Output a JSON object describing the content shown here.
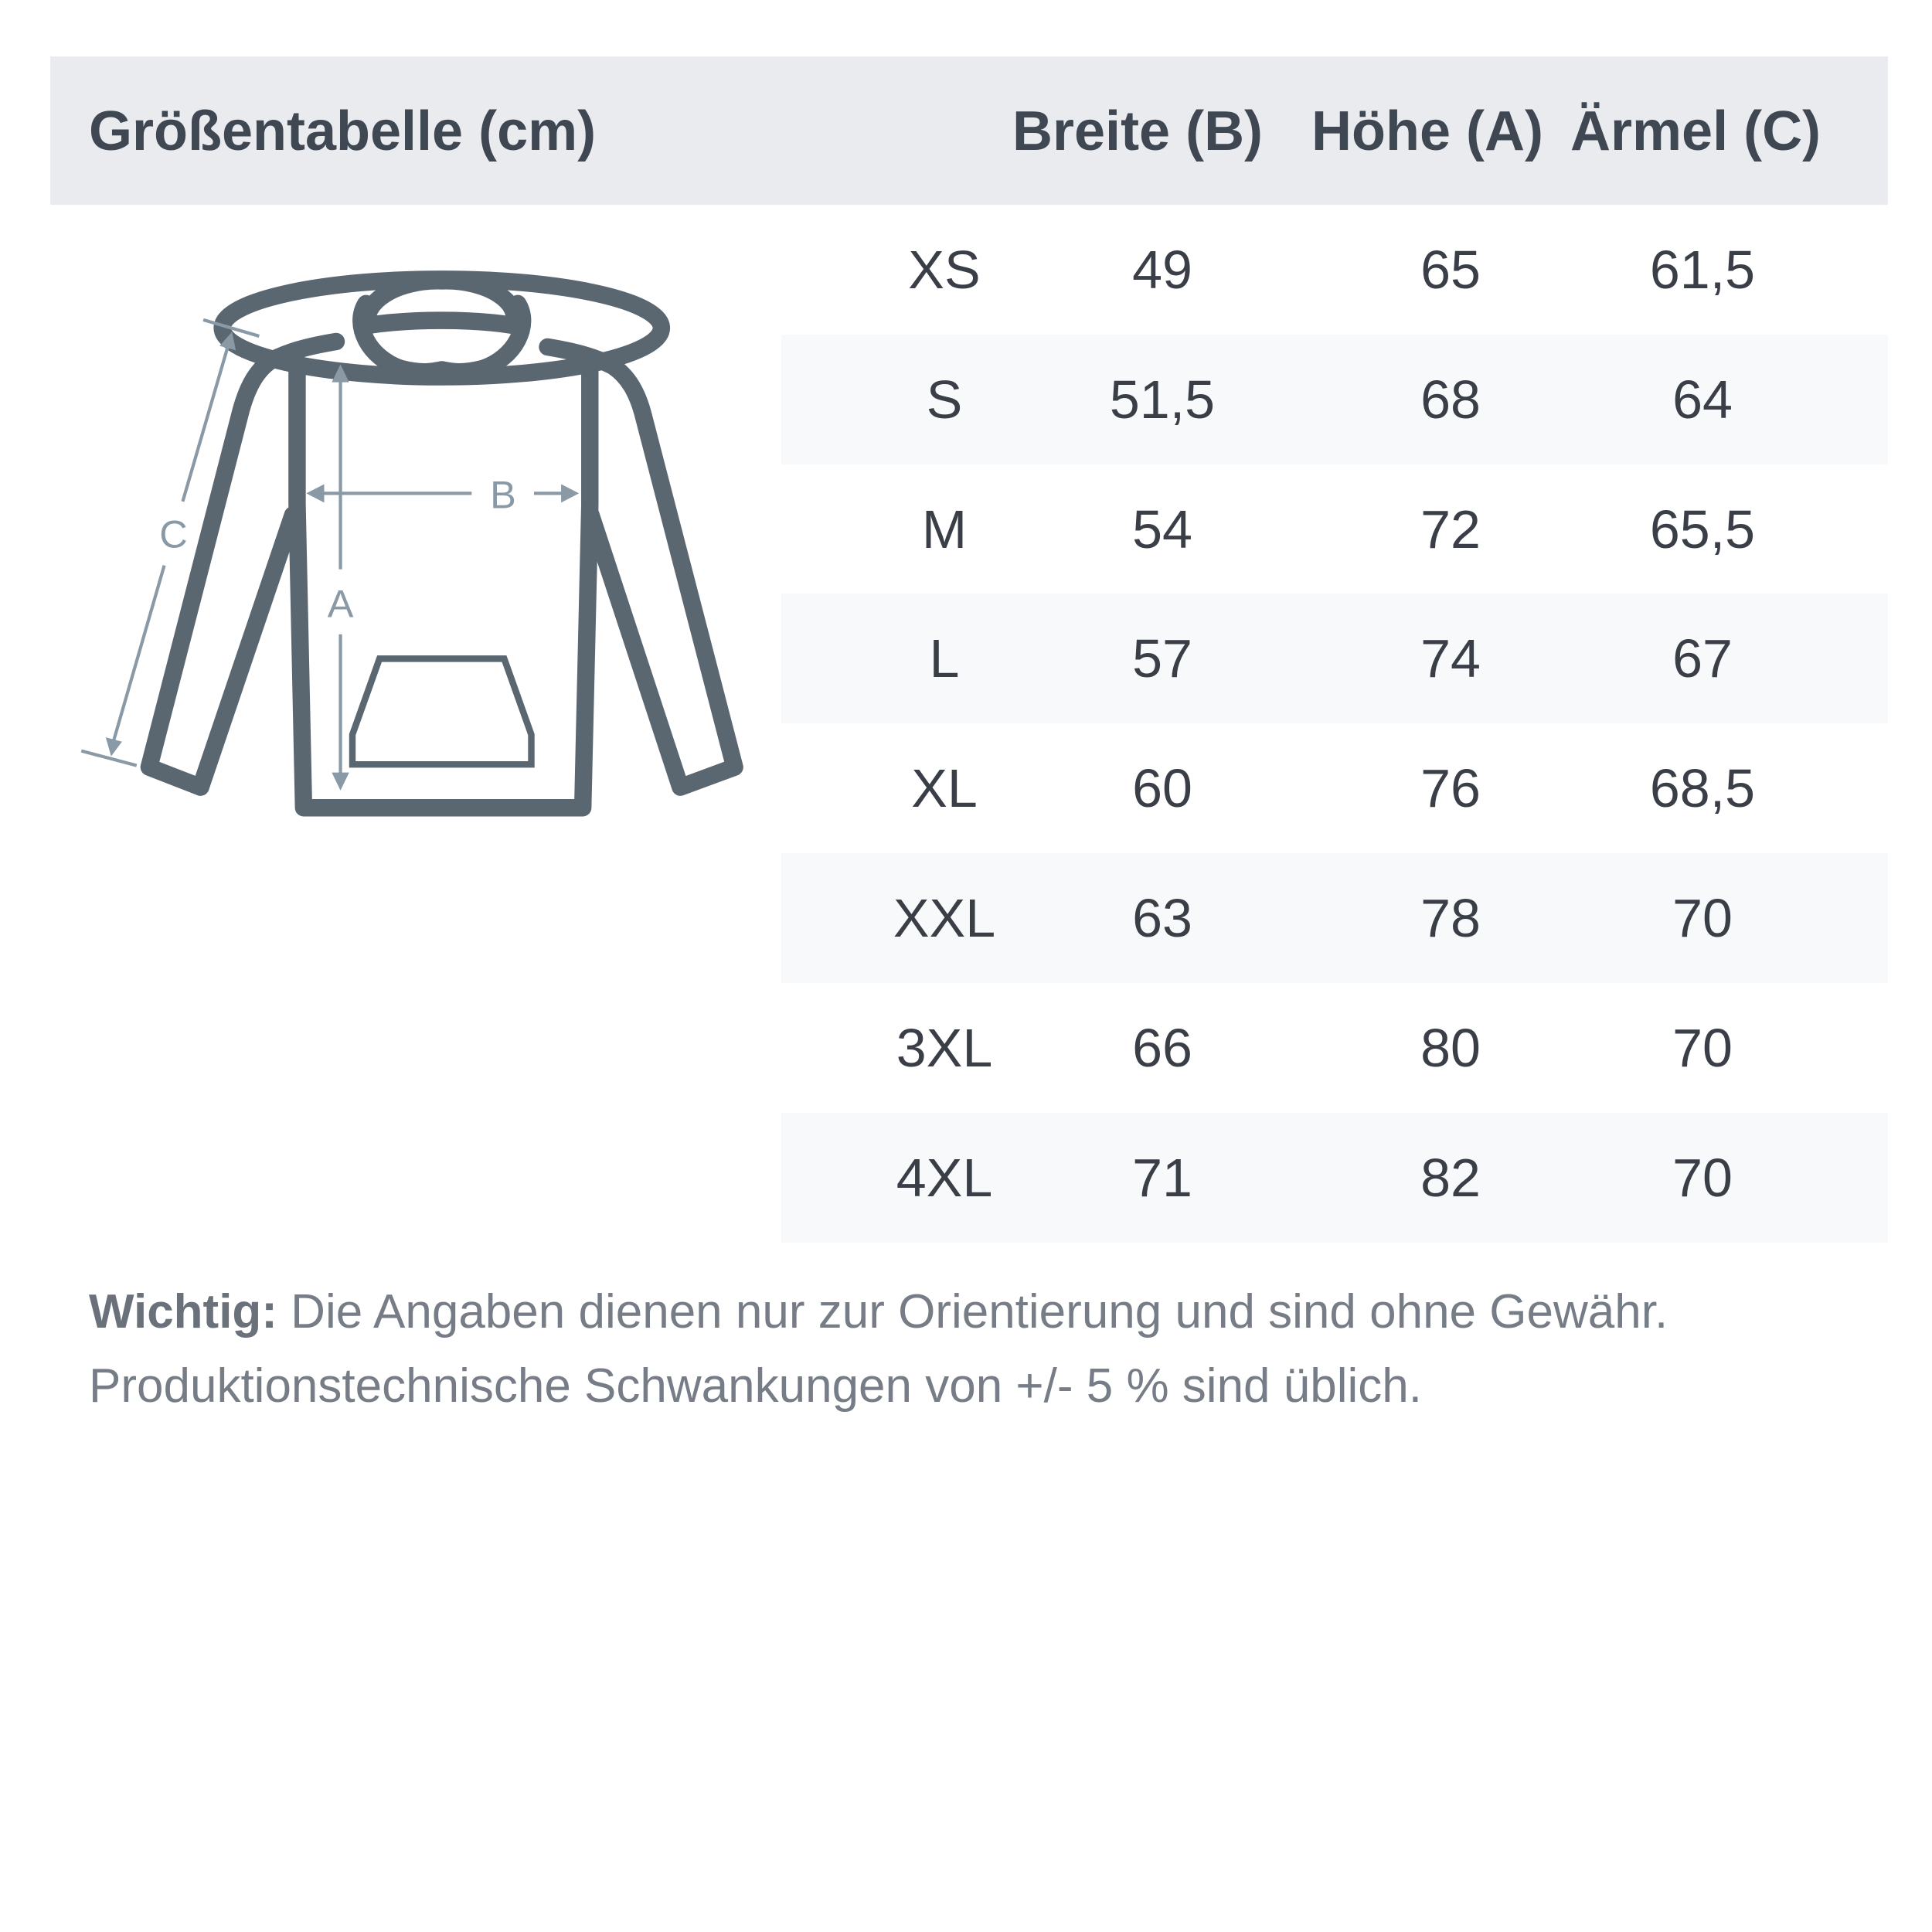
{
  "header": {
    "title": "Größentabelle (cm)",
    "columns": [
      "Breite (B)",
      "Höhe (A)",
      "Ärmel (C)"
    ]
  },
  "diagram": {
    "labels": {
      "width": "B",
      "height": "A",
      "sleeve": "C"
    },
    "colors": {
      "outline": "#5a6670",
      "measure": "#8a99a6"
    }
  },
  "rows": [
    {
      "size": "XS",
      "breite": "49",
      "hoehe": "65",
      "aermel": "61,5"
    },
    {
      "size": "S",
      "breite": "51,5",
      "hoehe": "68",
      "aermel": "64"
    },
    {
      "size": "M",
      "breite": "54",
      "hoehe": "72",
      "aermel": "65,5"
    },
    {
      "size": "L",
      "breite": "57",
      "hoehe": "74",
      "aermel": "67"
    },
    {
      "size": "XL",
      "breite": "60",
      "hoehe": "76",
      "aermel": "68,5"
    },
    {
      "size": "XXL",
      "breite": "63",
      "hoehe": "78",
      "aermel": "70"
    },
    {
      "size": "3XL",
      "breite": "66",
      "hoehe": "80",
      "aermel": "70"
    },
    {
      "size": "4XL",
      "breite": "71",
      "hoehe": "82",
      "aermel": "70"
    }
  ],
  "note": {
    "label": "Wichtig:",
    "line1": " Die Angaben dienen nur zur Orientierung und sind ohne Gewähr.",
    "line2": "Produktionstechnische Schwankungen von +/- 5 % sind üblich."
  }
}
